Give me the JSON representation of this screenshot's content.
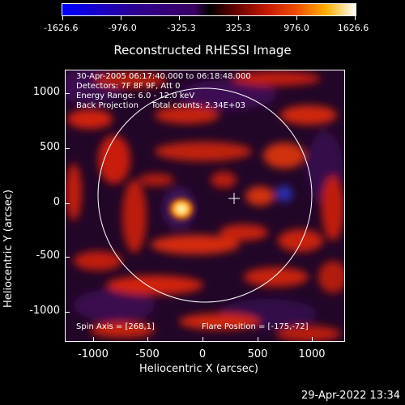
{
  "colorbar": {
    "ticks": [
      "-1626.6",
      "-976.0",
      "-325.3",
      "325.3",
      "976.0",
      "1626.6"
    ],
    "colors": [
      "#0000ff",
      "#ffffff"
    ]
  },
  "title": "Reconstructed RHESSI Image",
  "info": {
    "line1": "30-Apr-2005 06:17:40.000 to 06:18:48.000",
    "line2": "Detectors: 7F 8F 9F, Att 0",
    "line3": "Energy Range: 6.0 - 12.0 keV",
    "line4": "Back Projection     Total counts: 2.34E+03",
    "spin_axis": "Spin Axis = [268,1]",
    "flare_position": "Flare Position = [-175,-72]"
  },
  "axes": {
    "xlabel": "Heliocentric X (arcsec)",
    "ylabel": "Heliocentric Y (arcsec)",
    "xticks": [
      "-1000",
      "-500",
      "0",
      "500",
      "1000"
    ],
    "yticks": [
      "1000",
      "500",
      "0",
      "-500",
      "-1000"
    ]
  },
  "timestamp": "29-Apr-2022 13:34"
}
